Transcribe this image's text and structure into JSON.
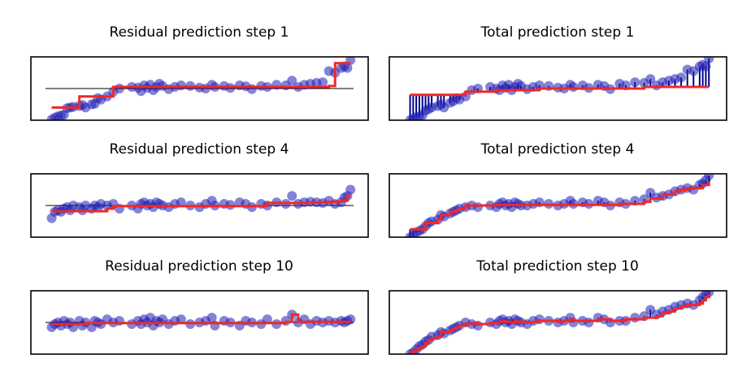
{
  "chart_data": [
    {
      "type": "scatter",
      "title": "Residual prediction step 1",
      "x": [
        0.02,
        0.03,
        0.04,
        0.05,
        0.06,
        0.07,
        0.08,
        0.09,
        0.11,
        0.12,
        0.13,
        0.15,
        0.16,
        0.17,
        0.18,
        0.2,
        0.22,
        0.24,
        0.28,
        0.3,
        0.31,
        0.32,
        0.33,
        0.34,
        0.35,
        0.36,
        0.37,
        0.38,
        0.4,
        0.42,
        0.44,
        0.47,
        0.5,
        0.52,
        0.54,
        0.55,
        0.58,
        0.6,
        0.63,
        0.65,
        0.67,
        0.7,
        0.72,
        0.75,
        0.78,
        0.8,
        0.82,
        0.84,
        0.86,
        0.88,
        0.9,
        0.92,
        0.94,
        0.96,
        0.97,
        0.98,
        0.99
      ],
      "series": [
        {
          "values": [
            -0.98,
            -0.92,
            -0.88,
            -0.85,
            -0.83,
            -0.62,
            -0.6,
            -0.58,
            -0.55,
            -0.52,
            -0.6,
            -0.5,
            -0.48,
            -0.3,
            -0.35,
            -0.25,
            -0.1,
            0.0,
            0.05,
            0.03,
            -0.08,
            0.1,
            0.02,
            0.12,
            -0.05,
            0.05,
            0.15,
            0.08,
            -0.02,
            0.05,
            0.1,
            0.08,
            0.03,
            0.0,
            0.12,
            0.05,
            0.08,
            0.02,
            0.1,
            0.07,
            -0.02,
            0.08,
            0.05,
            0.12,
            0.1,
            0.25,
            0.05,
            0.12,
            0.15,
            0.18,
            0.2,
            0.55,
            0.5,
            0.65,
            0.7,
            0.65,
            0.9
          ]
        },
        {
          "values": [
            -0.6,
            -0.6,
            -0.6,
            -0.6,
            -0.6,
            -0.6,
            -0.6,
            -0.6,
            -0.25,
            -0.25,
            -0.25,
            -0.25,
            -0.25,
            -0.25,
            -0.25,
            -0.25,
            0.05,
            0.05,
            0.05,
            0.05,
            0.05,
            0.05,
            0.05,
            0.05,
            0.05,
            0.05,
            0.05,
            0.05,
            0.05,
            0.05,
            0.05,
            0.05,
            0.05,
            0.05,
            0.05,
            0.05,
            0.05,
            0.05,
            0.05,
            0.05,
            0.05,
            0.05,
            0.05,
            0.05,
            0.05,
            0.05,
            0.05,
            0.05,
            0.05,
            0.05,
            0.05,
            0.08,
            0.8,
            0.8,
            0.8,
            0.8,
            0.8
          ]
        }
      ],
      "ylim": [
        -1.0,
        1.0
      ],
      "baseline": 0
    },
    {
      "type": "scatter",
      "title": "Total prediction step 1",
      "x": [
        0.02,
        0.03,
        0.04,
        0.05,
        0.06,
        0.07,
        0.08,
        0.09,
        0.11,
        0.12,
        0.13,
        0.15,
        0.16,
        0.17,
        0.18,
        0.2,
        0.22,
        0.24,
        0.28,
        0.3,
        0.31,
        0.32,
        0.33,
        0.34,
        0.35,
        0.36,
        0.37,
        0.38,
        0.4,
        0.42,
        0.44,
        0.47,
        0.5,
        0.52,
        0.54,
        0.55,
        0.58,
        0.6,
        0.63,
        0.65,
        0.67,
        0.7,
        0.72,
        0.75,
        0.78,
        0.8,
        0.82,
        0.84,
        0.86,
        0.88,
        0.9,
        0.92,
        0.94,
        0.96,
        0.97,
        0.98,
        0.99
      ],
      "series": [
        {
          "values": [
            -1.0,
            -0.95,
            -0.9,
            -0.88,
            -0.85,
            -0.7,
            -0.65,
            -0.6,
            -0.55,
            -0.5,
            -0.6,
            -0.45,
            -0.4,
            -0.3,
            -0.35,
            -0.25,
            -0.05,
            0.0,
            0.05,
            0.0,
            -0.05,
            0.1,
            0.02,
            0.12,
            -0.05,
            0.05,
            0.15,
            0.08,
            -0.02,
            0.05,
            0.1,
            0.08,
            0.03,
            0.0,
            0.12,
            0.05,
            0.1,
            0.02,
            0.12,
            0.08,
            -0.02,
            0.15,
            0.1,
            0.2,
            0.18,
            0.3,
            0.1,
            0.2,
            0.25,
            0.3,
            0.35,
            0.6,
            0.55,
            0.7,
            0.75,
            0.7,
            0.95
          ]
        },
        {
          "values": [
            -0.2,
            -0.2,
            -0.2,
            -0.2,
            -0.2,
            -0.2,
            -0.2,
            -0.2,
            -0.2,
            -0.2,
            -0.2,
            -0.2,
            -0.2,
            -0.2,
            -0.2,
            -0.1,
            -0.1,
            -0.1,
            -0.1,
            -0.05,
            -0.05,
            -0.05,
            -0.05,
            -0.05,
            -0.05,
            -0.05,
            -0.05,
            -0.05,
            -0.05,
            -0.05,
            0.0,
            0.0,
            0.0,
            0.0,
            0.0,
            0.0,
            0.0,
            0.0,
            0.0,
            0.0,
            0.0,
            0.0,
            0.0,
            0.0,
            0.05,
            0.05,
            0.05,
            0.05,
            0.05,
            0.05,
            0.05,
            0.05,
            0.05,
            0.05,
            0.05,
            0.05,
            0.05
          ]
        }
      ],
      "ylim": [
        -1.0,
        1.0
      ]
    },
    {
      "type": "scatter",
      "title": "Residual prediction step 4",
      "x": [
        0.02,
        0.03,
        0.04,
        0.05,
        0.06,
        0.07,
        0.08,
        0.09,
        0.11,
        0.12,
        0.13,
        0.15,
        0.16,
        0.17,
        0.18,
        0.2,
        0.22,
        0.24,
        0.28,
        0.3,
        0.31,
        0.32,
        0.33,
        0.34,
        0.35,
        0.36,
        0.37,
        0.38,
        0.4,
        0.42,
        0.44,
        0.47,
        0.5,
        0.52,
        0.54,
        0.55,
        0.58,
        0.6,
        0.63,
        0.65,
        0.67,
        0.7,
        0.72,
        0.75,
        0.78,
        0.8,
        0.82,
        0.84,
        0.86,
        0.88,
        0.9,
        0.92,
        0.94,
        0.96,
        0.97,
        0.98,
        0.99
      ],
      "series": [
        {
          "values": [
            -0.4,
            -0.2,
            -0.15,
            -0.2,
            -0.1,
            -0.05,
            -0.15,
            0.0,
            -0.05,
            -0.15,
            0.0,
            -0.1,
            0.0,
            -0.05,
            0.05,
            0.0,
            0.05,
            -0.1,
            0.0,
            -0.1,
            0.05,
            0.1,
            0.0,
            0.05,
            -0.05,
            0.1,
            0.05,
            0.0,
            -0.05,
            0.05,
            0.1,
            0.0,
            -0.05,
            0.05,
            0.15,
            0.0,
            0.05,
            0.02,
            0.1,
            0.05,
            -0.05,
            0.05,
            0.0,
            0.1,
            0.05,
            0.3,
            0.05,
            0.1,
            0.12,
            0.1,
            0.08,
            0.15,
            0.05,
            0.1,
            0.25,
            0.3,
            0.5
          ]
        },
        {
          "values": [
            -0.18,
            -0.18,
            -0.18,
            -0.18,
            -0.18,
            -0.18,
            -0.18,
            -0.18,
            -0.18,
            -0.18,
            -0.18,
            -0.18,
            -0.18,
            -0.18,
            -0.18,
            -0.1,
            -0.02,
            -0.02,
            -0.02,
            -0.02,
            -0.02,
            -0.02,
            -0.02,
            -0.02,
            -0.02,
            -0.02,
            -0.02,
            -0.02,
            -0.02,
            -0.02,
            -0.02,
            -0.02,
            -0.02,
            -0.02,
            -0.02,
            -0.02,
            -0.02,
            -0.02,
            -0.02,
            -0.02,
            -0.02,
            -0.02,
            0.08,
            0.08,
            0.08,
            0.08,
            0.08,
            0.08,
            0.1,
            0.1,
            0.1,
            0.12,
            0.12,
            0.15,
            0.15,
            0.3,
            0.3
          ]
        }
      ],
      "ylim": [
        -1.0,
        1.0
      ],
      "baseline": 0
    },
    {
      "type": "scatter",
      "title": "Total prediction step 4",
      "x": [
        0.02,
        0.03,
        0.04,
        0.05,
        0.06,
        0.07,
        0.08,
        0.09,
        0.11,
        0.12,
        0.13,
        0.15,
        0.16,
        0.17,
        0.18,
        0.2,
        0.22,
        0.24,
        0.28,
        0.3,
        0.31,
        0.32,
        0.33,
        0.34,
        0.35,
        0.36,
        0.37,
        0.38,
        0.4,
        0.42,
        0.44,
        0.47,
        0.5,
        0.52,
        0.54,
        0.55,
        0.58,
        0.6,
        0.63,
        0.65,
        0.67,
        0.7,
        0.72,
        0.75,
        0.78,
        0.8,
        0.82,
        0.84,
        0.86,
        0.88,
        0.9,
        0.92,
        0.94,
        0.96,
        0.97,
        0.98,
        0.99
      ],
      "series": [
        {
          "values": [
            -1.0,
            -0.95,
            -0.85,
            -0.8,
            -0.75,
            -0.65,
            -0.55,
            -0.5,
            -0.45,
            -0.3,
            -0.35,
            -0.25,
            -0.2,
            -0.15,
            -0.1,
            -0.05,
            0.0,
            -0.05,
            0.0,
            -0.05,
            0.05,
            0.1,
            0.0,
            0.05,
            -0.05,
            0.1,
            0.05,
            0.0,
            0.0,
            0.05,
            0.1,
            0.05,
            0.0,
            0.05,
            0.15,
            0.05,
            0.1,
            0.05,
            0.15,
            0.1,
            0.0,
            0.1,
            0.05,
            0.15,
            0.2,
            0.4,
            0.25,
            0.3,
            0.35,
            0.45,
            0.5,
            0.55,
            0.5,
            0.65,
            0.7,
            0.8,
            0.95
          ]
        },
        {
          "values": [
            -0.75,
            -0.75,
            -0.75,
            -0.75,
            -0.75,
            -0.55,
            -0.55,
            -0.55,
            -0.45,
            -0.3,
            -0.3,
            -0.2,
            -0.2,
            -0.15,
            -0.1,
            0.0,
            0.0,
            0.0,
            0.0,
            0.02,
            0.02,
            0.02,
            0.02,
            0.02,
            0.02,
            0.02,
            0.02,
            0.02,
            0.02,
            0.02,
            0.02,
            0.02,
            0.02,
            0.02,
            0.02,
            0.02,
            0.02,
            0.02,
            0.02,
            0.02,
            0.02,
            0.05,
            0.05,
            0.05,
            0.12,
            0.22,
            0.22,
            0.35,
            0.35,
            0.45,
            0.5,
            0.55,
            0.55,
            0.55,
            0.65,
            0.65,
            0.75
          ]
        }
      ],
      "ylim": [
        -1.0,
        1.0
      ]
    },
    {
      "type": "scatter",
      "title": "Residual prediction step 10",
      "x": [
        0.02,
        0.03,
        0.04,
        0.05,
        0.06,
        0.07,
        0.08,
        0.09,
        0.11,
        0.12,
        0.13,
        0.15,
        0.16,
        0.17,
        0.18,
        0.2,
        0.22,
        0.24,
        0.28,
        0.3,
        0.31,
        0.32,
        0.33,
        0.34,
        0.35,
        0.36,
        0.37,
        0.38,
        0.4,
        0.42,
        0.44,
        0.47,
        0.5,
        0.52,
        0.54,
        0.55,
        0.58,
        0.6,
        0.63,
        0.65,
        0.67,
        0.7,
        0.72,
        0.75,
        0.78,
        0.8,
        0.82,
        0.84,
        0.86,
        0.88,
        0.9,
        0.92,
        0.94,
        0.96,
        0.97,
        0.98,
        0.99
      ],
      "series": [
        {
          "values": [
            -0.15,
            -0.05,
            0.0,
            -0.1,
            0.05,
            -0.05,
            0.0,
            -0.15,
            0.05,
            -0.1,
            0.0,
            -0.15,
            0.05,
            0.0,
            -0.05,
            0.1,
            0.0,
            0.05,
            -0.05,
            0.05,
            -0.05,
            0.1,
            0.0,
            0.15,
            -0.1,
            0.05,
            0.0,
            0.1,
            -0.05,
            0.05,
            0.1,
            -0.05,
            0.0,
            0.05,
            0.15,
            -0.1,
            0.05,
            0.0,
            -0.1,
            0.05,
            0.0,
            -0.05,
            0.1,
            -0.05,
            0.05,
            0.25,
            0.0,
            0.1,
            -0.05,
            0.05,
            0.0,
            0.05,
            0.0,
            0.05,
            0.0,
            0.05,
            0.1
          ]
        },
        {
          "values": [
            -0.05,
            -0.05,
            -0.05,
            -0.05,
            -0.05,
            -0.05,
            -0.05,
            -0.05,
            -0.05,
            -0.05,
            -0.02,
            -0.02,
            -0.02,
            -0.02,
            -0.02,
            -0.02,
            -0.02,
            -0.02,
            -0.02,
            -0.02,
            -0.02,
            -0.02,
            -0.02,
            -0.02,
            -0.02,
            -0.02,
            -0.02,
            -0.02,
            -0.02,
            -0.02,
            -0.02,
            -0.02,
            -0.02,
            -0.02,
            -0.02,
            -0.02,
            -0.02,
            -0.02,
            -0.02,
            -0.02,
            -0.02,
            -0.02,
            -0.02,
            -0.02,
            0.02,
            0.25,
            0.02,
            0.02,
            0.02,
            0.02,
            0.02,
            0.02,
            0.02,
            0.02,
            0.02,
            0.02,
            0.02
          ]
        }
      ],
      "ylim": [
        -1.0,
        1.0
      ],
      "baseline": 0
    },
    {
      "type": "scatter",
      "title": "Total prediction step 10",
      "x": [
        0.02,
        0.03,
        0.04,
        0.05,
        0.06,
        0.07,
        0.08,
        0.09,
        0.11,
        0.12,
        0.13,
        0.15,
        0.16,
        0.17,
        0.18,
        0.2,
        0.22,
        0.24,
        0.28,
        0.3,
        0.31,
        0.32,
        0.33,
        0.34,
        0.35,
        0.36,
        0.37,
        0.38,
        0.4,
        0.42,
        0.44,
        0.47,
        0.5,
        0.52,
        0.54,
        0.55,
        0.58,
        0.6,
        0.63,
        0.65,
        0.67,
        0.7,
        0.72,
        0.75,
        0.78,
        0.8,
        0.82,
        0.84,
        0.86,
        0.88,
        0.9,
        0.92,
        0.94,
        0.96,
        0.97,
        0.98,
        0.99
      ],
      "series": [
        {
          "values": [
            -1.0,
            -0.95,
            -0.85,
            -0.75,
            -0.7,
            -0.6,
            -0.55,
            -0.45,
            -0.4,
            -0.3,
            -0.35,
            -0.25,
            -0.2,
            -0.15,
            -0.1,
            0.0,
            -0.05,
            -0.1,
            0.0,
            -0.05,
            0.05,
            0.1,
            0.0,
            0.05,
            -0.05,
            0.1,
            0.05,
            0.0,
            -0.05,
            0.05,
            0.1,
            0.05,
            0.0,
            0.05,
            0.15,
            0.0,
            0.05,
            0.0,
            0.15,
            0.1,
            0.0,
            0.05,
            0.05,
            0.15,
            0.2,
            0.4,
            0.25,
            0.35,
            0.4,
            0.5,
            0.55,
            0.6,
            0.55,
            0.7,
            0.8,
            0.9,
            0.95
          ]
        },
        {
          "values": [
            -0.95,
            -0.9,
            -0.85,
            -0.8,
            -0.75,
            -0.65,
            -0.55,
            -0.5,
            -0.45,
            -0.3,
            -0.3,
            -0.25,
            -0.2,
            -0.15,
            -0.1,
            -0.05,
            -0.02,
            -0.05,
            -0.02,
            -0.02,
            0.02,
            0.05,
            0.02,
            0.02,
            -0.02,
            0.05,
            0.02,
            0.02,
            0.0,
            0.02,
            0.05,
            0.05,
            0.02,
            0.05,
            0.1,
            0.05,
            0.05,
            0.05,
            0.1,
            0.1,
            0.05,
            0.05,
            0.1,
            0.1,
            0.15,
            0.15,
            0.2,
            0.3,
            0.35,
            0.45,
            0.5,
            0.55,
            0.55,
            0.6,
            0.7,
            0.8,
            0.9
          ]
        }
      ],
      "ylim": [
        -1.0,
        1.0
      ]
    }
  ]
}
